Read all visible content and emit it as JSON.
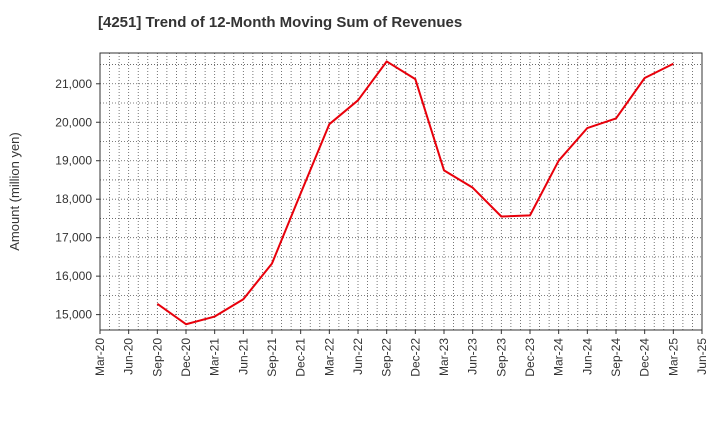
{
  "chart_data": {
    "type": "line",
    "title": "[4251]  Trend of 12-Month Moving Sum of Revenues",
    "xlabel": "",
    "ylabel": "Amount (million yen)",
    "categories": [
      "Mar-20",
      "Jun-20",
      "Sep-20",
      "Dec-20",
      "Mar-21",
      "Jun-21",
      "Sep-21",
      "Dec-21",
      "Mar-22",
      "Jun-22",
      "Sep-22",
      "Dec-22",
      "Mar-23",
      "Jun-23",
      "Sep-23",
      "Dec-23",
      "Mar-24",
      "Jun-24",
      "Sep-24",
      "Dec-24",
      "Mar-25",
      "Jun-25"
    ],
    "y_ticks": [
      "15,000",
      "16,000",
      "17,000",
      "18,000",
      "19,000",
      "20,000",
      "21,000"
    ],
    "ylim": [
      14600,
      21800
    ],
    "grid": true,
    "series": [
      {
        "color": "#e8000b",
        "values": [
          null,
          null,
          15280,
          14750,
          14950,
          15400,
          16330,
          18150,
          19950,
          20570,
          21580,
          21120,
          18750,
          18300,
          17550,
          17580,
          19000,
          19850,
          20100,
          21150,
          21520,
          null
        ]
      }
    ]
  }
}
